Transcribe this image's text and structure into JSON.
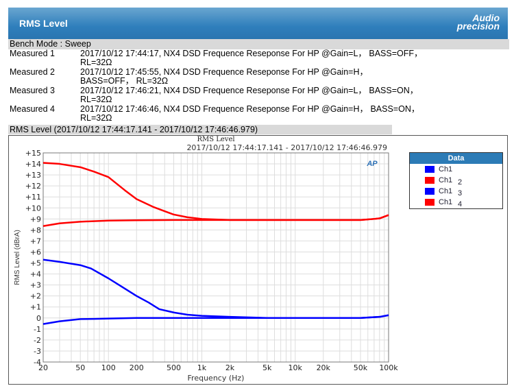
{
  "header": {
    "title": "RMS Level",
    "logo": "Audio precision"
  },
  "bench_mode": "Bench Mode : Sweep",
  "measurements": [
    {
      "label": "Measured 1",
      "line1": "2017/10/12 17:44:17, NX4 DSD Frequence Reseponse For HP @Gain=L， BASS=OFF，",
      "line2": "RL=32Ω"
    },
    {
      "label": "Measured 2",
      "line1": "2017/10/12 17:45:55, NX4 DSD Frequence Reseponse For HP @Gain=H，",
      "line2": "BASS=OFF， RL=32Ω"
    },
    {
      "label": "Measured 3",
      "line1": "2017/10/12 17:46:21, NX4 DSD Frequence Reseponse For HP @Gain=L， BASS=ON，",
      "line2": "RL=32Ω"
    },
    {
      "label": "Measured 4",
      "line1": "2017/10/12 17:46:46, NX4 DSD Frequence Reseponse For HP @Gain=H， BASS=ON，",
      "line2": "RL=32Ω"
    }
  ],
  "section_title": "RMS Level (2017/10/12 17:44:17.141 - 2017/10/12 17:46:46.979)",
  "chart_data": {
    "type": "line",
    "title": "RMS Level",
    "subtitle": "2017/10/12 17:44:17.141 - 2017/10/12 17:46:46.979",
    "xlabel": "Frequency (Hz)",
    "ylabel": "RMS Level (dBrA)",
    "xscale": "log",
    "xlim": [
      20,
      100000
    ],
    "ylim": [
      -4,
      15
    ],
    "grid": true,
    "xticks": [
      {
        "v": 20,
        "l": "20"
      },
      {
        "v": 50,
        "l": "50"
      },
      {
        "v": 100,
        "l": "100"
      },
      {
        "v": 200,
        "l": "200"
      },
      {
        "v": 500,
        "l": "500"
      },
      {
        "v": 1000,
        "l": "1k"
      },
      {
        "v": 2000,
        "l": "2k"
      },
      {
        "v": 5000,
        "l": "5k"
      },
      {
        "v": 10000,
        "l": "10k"
      },
      {
        "v": 20000,
        "l": "20k"
      },
      {
        "v": 50000,
        "l": "50k"
      },
      {
        "v": 100000,
        "l": "100k"
      }
    ],
    "yticks": [
      {
        "v": 15,
        "l": "+15"
      },
      {
        "v": 14,
        "l": "+14"
      },
      {
        "v": 13,
        "l": "+13"
      },
      {
        "v": 12,
        "l": "+12"
      },
      {
        "v": 11,
        "l": "+11"
      },
      {
        "v": 10,
        "l": "+10"
      },
      {
        "v": 9,
        "l": "+9"
      },
      {
        "v": 8,
        "l": "+8"
      },
      {
        "v": 7,
        "l": "+7"
      },
      {
        "v": 6,
        "l": "+6"
      },
      {
        "v": 5,
        "l": "+5"
      },
      {
        "v": 4,
        "l": "+4"
      },
      {
        "v": 3,
        "l": "+3"
      },
      {
        "v": 2,
        "l": "+2"
      },
      {
        "v": 1,
        "l": "+1"
      },
      {
        "v": 0,
        "l": "0"
      },
      {
        "v": -1,
        "l": "-1"
      },
      {
        "v": -2,
        "l": "-2"
      },
      {
        "v": -3,
        "l": "-3"
      },
      {
        "v": -4,
        "l": "-4"
      }
    ],
    "legend_title": "Data",
    "legend_position": "right",
    "series": [
      {
        "name": "Ch1",
        "sub": "",
        "color": "#0000ff",
        "x": [
          20,
          30,
          50,
          70,
          100,
          200,
          500,
          1000,
          5000,
          50000,
          80000,
          100000
        ],
        "y": [
          -0.55,
          -0.3,
          -0.1,
          -0.08,
          -0.05,
          0,
          0,
          0,
          0,
          0,
          0.1,
          0.25
        ]
      },
      {
        "name": "Ch1",
        "sub": "2",
        "color": "#ff0000",
        "x": [
          20,
          30,
          50,
          100,
          200,
          500,
          1000,
          5000,
          50000,
          70000,
          80000,
          100000
        ],
        "y": [
          8.35,
          8.6,
          8.75,
          8.85,
          8.88,
          8.9,
          8.9,
          8.9,
          8.9,
          9.0,
          9.05,
          9.35
        ]
      },
      {
        "name": "Ch1",
        "sub": "3",
        "color": "#0000ff",
        "x": [
          20,
          30,
          50,
          65,
          100,
          130,
          200,
          270,
          350,
          500,
          700,
          1000,
          2000,
          5000,
          50000,
          80000,
          100000
        ],
        "y": [
          5.3,
          5.1,
          4.8,
          4.5,
          3.6,
          3.0,
          2.0,
          1.4,
          0.8,
          0.5,
          0.3,
          0.2,
          0.1,
          0,
          0,
          0.1,
          0.25
        ]
      },
      {
        "name": "Ch1",
        "sub": "4",
        "color": "#ff0000",
        "x": [
          20,
          30,
          50,
          70,
          100,
          150,
          200,
          300,
          400,
          500,
          700,
          1000,
          2000,
          50000,
          70000,
          80000,
          100000
        ],
        "y": [
          14.1,
          14.0,
          13.7,
          13.3,
          12.8,
          11.6,
          10.8,
          10.1,
          9.7,
          9.4,
          9.15,
          9.0,
          8.9,
          8.9,
          9.0,
          9.05,
          9.35
        ]
      }
    ]
  }
}
